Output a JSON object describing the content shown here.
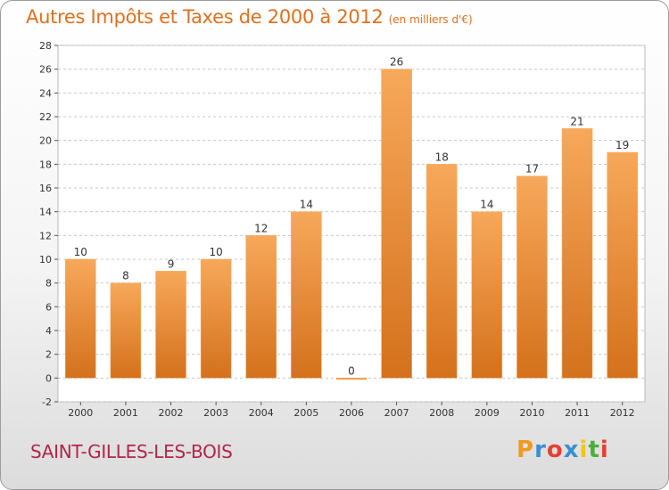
{
  "header": {
    "title": "Autres Impôts et Taxes de 2000 à 2012",
    "subtitle": "(en milliers d'€)"
  },
  "footer": {
    "city": "SAINT-GILLES-LES-BOIS",
    "logo": {
      "letters": [
        "P",
        "r",
        "o",
        "x",
        "i",
        "t",
        "i"
      ],
      "colors": [
        "#f29a1c",
        "#3a8fd0",
        "#e8402f",
        "#3a8fd0",
        "#f2c41c",
        "#4cae3c",
        "#e8402f"
      ]
    }
  },
  "chart_data": {
    "type": "bar",
    "categories": [
      "2000",
      "2001",
      "2002",
      "2003",
      "2004",
      "2005",
      "2006",
      "2007",
      "2008",
      "2009",
      "2010",
      "2011",
      "2012"
    ],
    "values": [
      10,
      8,
      9,
      10,
      12,
      14,
      0,
      26,
      18,
      14,
      17,
      21,
      19
    ],
    "data_labels": [
      "10",
      "8",
      "9",
      "10",
      "12",
      "14",
      "0",
      "26",
      "18",
      "14",
      "17",
      "21",
      "19"
    ],
    "title": "Autres Impôts et Taxes de 2000 à 2012",
    "subtitle": "(en milliers d'€)",
    "xlabel": "",
    "ylabel": "",
    "ylim": [
      -2,
      28
    ],
    "yticks": [
      -2,
      0,
      2,
      4,
      6,
      8,
      10,
      12,
      14,
      16,
      18,
      20,
      22,
      24,
      26,
      28
    ],
    "grid": true,
    "legend": "none",
    "colors": {
      "bar_light": "#f7a85a",
      "bar_dark": "#d4711c",
      "grid": "#c8c8c8",
      "plot_bg": "#ffffff"
    }
  }
}
